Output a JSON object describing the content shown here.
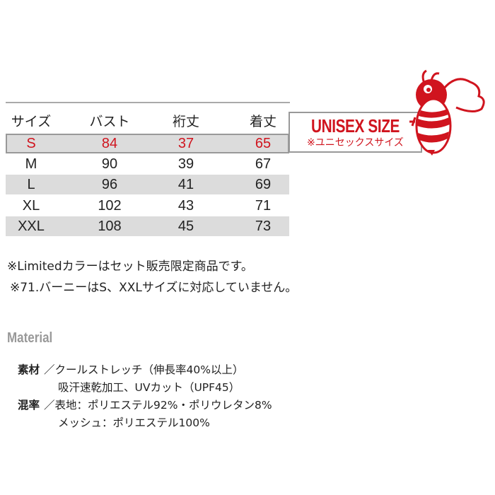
{
  "table": {
    "headers": [
      "サイズ",
      "バスト",
      "裄丈",
      "着丈"
    ],
    "rows": [
      {
        "size": "S",
        "bust": "84",
        "sleeve": "37",
        "length": "65",
        "highlight": true
      },
      {
        "size": "M",
        "bust": "90",
        "sleeve": "39",
        "length": "67"
      },
      {
        "size": "L",
        "bust": "96",
        "sleeve": "41",
        "length": "69"
      },
      {
        "size": "XL",
        "bust": "102",
        "sleeve": "43",
        "length": "71"
      },
      {
        "size": "XXL",
        "bust": "108",
        "sleeve": "45",
        "length": "73"
      }
    ]
  },
  "unisex": {
    "title": "UNISEX SIZE",
    "subtitle": "※ユニセックスサイズ"
  },
  "mascot": "bee-mascot-icon",
  "notes": [
    "※Limitedカラーはセット販売限定商品です。",
    "※71.バーニーはS、XXLサイズに対応していません。"
  ],
  "material": {
    "heading": "Material",
    "lines": [
      {
        "label": "素材",
        "text": "／クールストレッチ（伸長率40%以上）"
      },
      {
        "label": "",
        "text": "吸汗速乾加工、UVカット（UPF45）"
      },
      {
        "label": "混率",
        "text": "／表地：ポリエステル92%・ポリウレタン8%"
      },
      {
        "label": "",
        "text": "メッシュ：ポリエステル100%"
      }
    ]
  },
  "colors": {
    "accent": "#d0141e",
    "row_gray": "#dcdcdc"
  }
}
